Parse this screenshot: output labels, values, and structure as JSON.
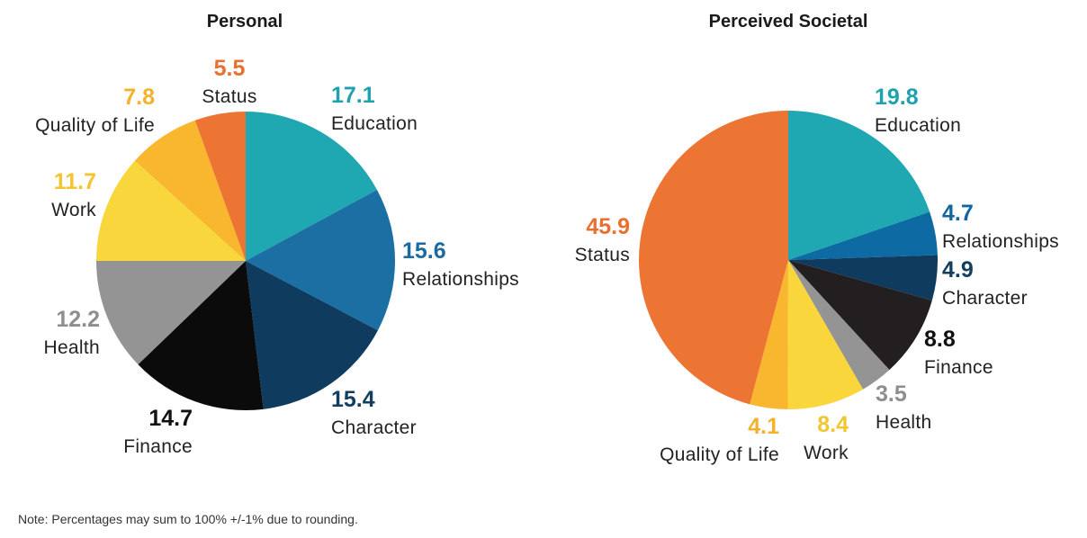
{
  "chart_data": [
    {
      "type": "pie",
      "title": "Personal",
      "slices": [
        {
          "label": "Education",
          "value": 17.1,
          "display": "17.1",
          "color": "#20A8B2",
          "label_color": "#1FA2AD"
        },
        {
          "label": "Relationships",
          "value": 15.6,
          "display": "15.6",
          "color": "#1B6FA3",
          "label_color": "#1A6B9F"
        },
        {
          "label": "Character",
          "value": 15.4,
          "display": "15.4",
          "color": "#0F3C5E",
          "label_color": "#123E60"
        },
        {
          "label": "Finance",
          "value": 14.7,
          "display": "14.7",
          "color": "#0B0B0B",
          "label_color": "#111111"
        },
        {
          "label": "Health",
          "value": 12.2,
          "display": "12.2",
          "color": "#949494",
          "label_color": "#8E8E8E"
        },
        {
          "label": "Work",
          "value": 11.7,
          "display": "11.7",
          "color": "#F9D63C",
          "label_color": "#F2C531"
        },
        {
          "label": "Quality of Life",
          "value": 7.8,
          "display": "7.8",
          "color": "#F9B72F",
          "label_color": "#F4B22C"
        },
        {
          "label": "Status",
          "value": 5.5,
          "display": "5.5",
          "color": "#EC7533",
          "label_color": "#E97030"
        }
      ]
    },
    {
      "type": "pie",
      "title": "Perceived Societal",
      "slices": [
        {
          "label": "Education",
          "value": 19.8,
          "display": "19.8",
          "color": "#20A8B2",
          "label_color": "#1FA2AD"
        },
        {
          "label": "Relationships",
          "value": 4.7,
          "display": "4.7",
          "color": "#0D6AA3",
          "label_color": "#0F66A0"
        },
        {
          "label": "Character",
          "value": 4.9,
          "display": "4.9",
          "color": "#0F3C5E",
          "label_color": "#123E60"
        },
        {
          "label": "Finance",
          "value": 8.8,
          "display": "8.8",
          "color": "#231F20",
          "label_color": "#111111"
        },
        {
          "label": "Health",
          "value": 3.5,
          "display": "3.5",
          "color": "#949494",
          "label_color": "#8E8E8E"
        },
        {
          "label": "Work",
          "value": 8.4,
          "display": "8.4",
          "color": "#F9D63C",
          "label_color": "#F2C531"
        },
        {
          "label": "Quality of Life",
          "value": 4.1,
          "display": "4.1",
          "color": "#F9B72F",
          "label_color": "#F4B22C"
        },
        {
          "label": "Status",
          "value": 45.9,
          "display": "45.9",
          "color": "#EC7533",
          "label_color": "#E97030"
        }
      ]
    }
  ],
  "note": "Note: Percentages may sum to 100% +/-1% due to rounding."
}
